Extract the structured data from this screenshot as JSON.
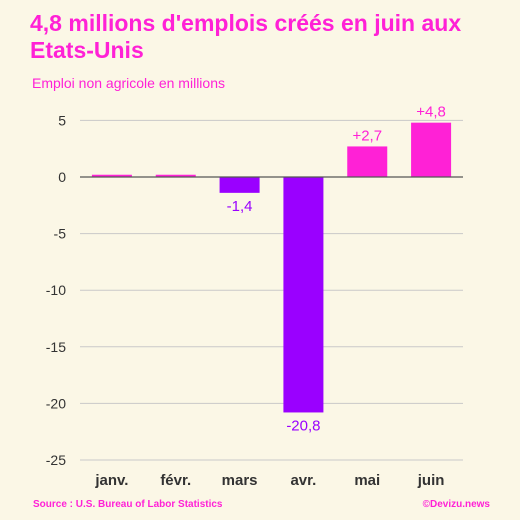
{
  "header": {
    "title": "4,8 millions d'emplois créés en juin aux Etats-Unis",
    "subtitle": "Emploi non agricole en millions"
  },
  "footer": {
    "source": "Source : U.S. Bureau of Labor Statistics",
    "credit": "©Devizu.news"
  },
  "colors": {
    "positive": "#ff21d6",
    "negative": "#9a00ff",
    "grid": "#c9c9c9",
    "axis": "#555555",
    "text": "#333333"
  },
  "chart_data": {
    "type": "bar",
    "categories": [
      "janv.",
      "févr.",
      "mars",
      "avr.",
      "mai",
      "juin"
    ],
    "values": [
      0.2,
      0.2,
      -1.4,
      -20.8,
      2.7,
      4.8
    ],
    "data_labels": [
      "",
      "",
      "-1,4",
      "-20,8",
      "+2,7",
      "+4,8"
    ],
    "yticks": [
      5,
      0,
      -5,
      -10,
      -15,
      -20,
      -25
    ],
    "ytick_labels": [
      "5",
      "0",
      "-5",
      "-10",
      "-15",
      "-20",
      "-25"
    ],
    "ylim": [
      -25,
      6
    ],
    "grid": true,
    "title": "4,8 millions d'emplois créés en juin aux Etats-Unis",
    "ylabel": "Emploi non agricole en millions"
  }
}
